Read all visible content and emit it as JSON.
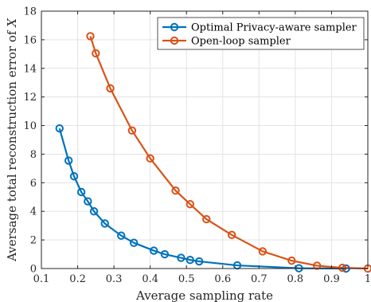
{
  "chart_data": {
    "type": "line",
    "xlabel": "Average sampling rate",
    "ylabel_prefix": "Aversage total reconstruction error of ",
    "ylabel_var": "X",
    "xlim": [
      0.1,
      1
    ],
    "ylim": [
      0,
      18
    ],
    "xticks": [
      "0.1",
      "0.2",
      "0.3",
      "0.4",
      "0.5",
      "0.6",
      "0.7",
      "0.8",
      "0.9",
      "1"
    ],
    "yticks": [
      "0",
      "2",
      "4",
      "6",
      "8",
      "10",
      "12",
      "14",
      "16",
      "18"
    ],
    "grid": true,
    "legend_position": "top-right",
    "series": [
      {
        "name": "Optimal Privacy-aware sampler",
        "color": "#0072BD",
        "x": [
          0.15,
          0.175,
          0.19,
          0.21,
          0.228,
          0.245,
          0.275,
          0.32,
          0.355,
          0.41,
          0.44,
          0.485,
          0.51,
          0.535,
          0.64,
          0.81,
          0.94
        ],
        "y": [
          9.8,
          7.55,
          6.45,
          5.35,
          4.7,
          4.0,
          3.15,
          2.3,
          1.8,
          1.25,
          1.0,
          0.75,
          0.6,
          0.5,
          0.22,
          0.02,
          0.0
        ]
      },
      {
        "name": "Open-loop sampler",
        "color": "#D95319",
        "x": [
          0.235,
          0.25,
          0.29,
          0.35,
          0.4,
          0.47,
          0.51,
          0.555,
          0.625,
          0.71,
          0.79,
          0.86,
          0.93,
          1.0
        ],
        "y": [
          16.25,
          15.05,
          12.6,
          9.65,
          7.7,
          5.45,
          4.5,
          3.45,
          2.35,
          1.2,
          0.55,
          0.2,
          0.05,
          0.0
        ]
      }
    ]
  }
}
